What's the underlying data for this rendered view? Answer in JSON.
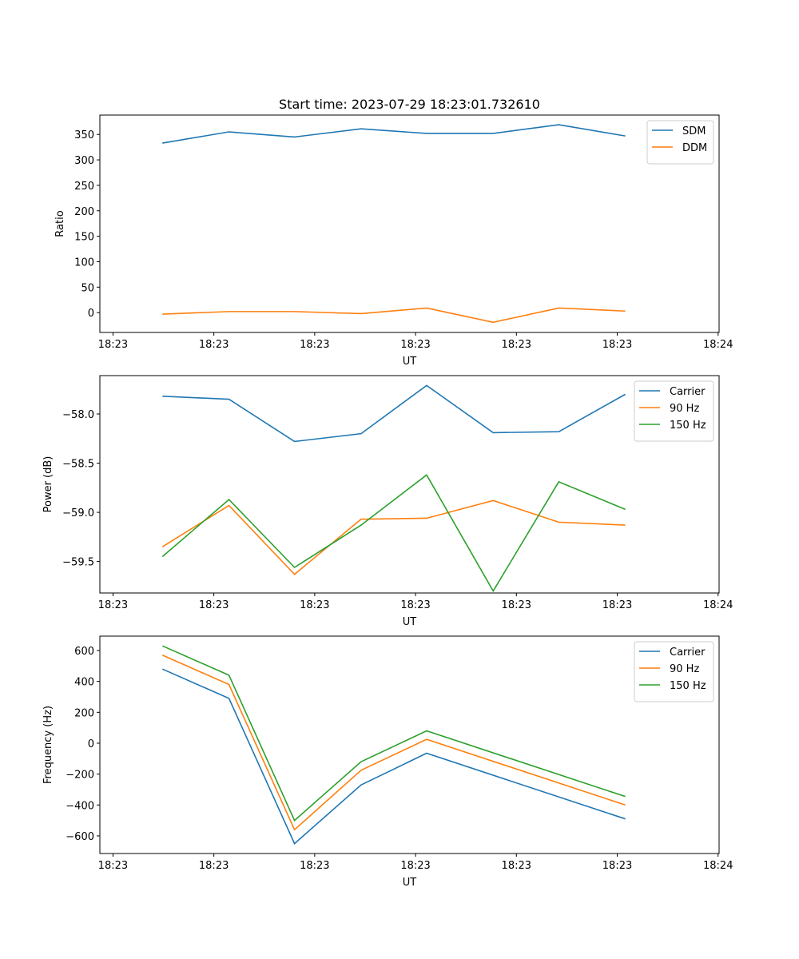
{
  "chart_data": [
    {
      "type": "line",
      "title": "Start time: 2023-07-29 18:23:01.732610",
      "xlabel": "UT",
      "ylabel": "Ratio",
      "x_unit": "seconds after 18:23:00",
      "xlim": [
        -1.3,
        60.1
      ],
      "xticks": [
        0,
        10,
        20,
        30,
        40,
        50,
        60
      ],
      "xtick_labels": [
        "18:23",
        "18:23",
        "18:23",
        "18:23",
        "18:23",
        "18:23",
        "18:24"
      ],
      "ylim": [
        -39,
        388
      ],
      "yticks": [
        0,
        50,
        100,
        150,
        200,
        250,
        300,
        350
      ],
      "ytick_labels": [
        "0",
        "50",
        "100",
        "150",
        "200",
        "250",
        "300",
        "350"
      ],
      "legend": "top-right",
      "x": [
        4.9,
        11.5,
        18.0,
        24.6,
        31.1,
        37.7,
        44.2,
        50.8
      ],
      "series": [
        {
          "name": "SDM",
          "color": "#1f77b4",
          "values": [
            333,
            355,
            345,
            361,
            352,
            352,
            369,
            347
          ]
        },
        {
          "name": "DDM",
          "color": "#ff7f0e",
          "values": [
            -3,
            2,
            2,
            -2,
            9,
            -19,
            9,
            3
          ]
        }
      ]
    },
    {
      "type": "line",
      "title": "",
      "xlabel": "UT",
      "ylabel": "Power (dB)",
      "x_unit": "seconds after 18:23:00",
      "xlim": [
        -1.3,
        60.1
      ],
      "xticks": [
        0,
        10,
        20,
        30,
        40,
        50,
        60
      ],
      "xtick_labels": [
        "18:23",
        "18:23",
        "18:23",
        "18:23",
        "18:23",
        "18:23",
        "18:24"
      ],
      "ylim": [
        -59.82,
        -57.61
      ],
      "yticks": [
        -58.0,
        -58.5,
        -59.0,
        -59.5
      ],
      "ytick_labels": [
        "−58.0",
        "−58.5",
        "−59.0",
        "−59.5"
      ],
      "legend": "top-right",
      "x": [
        4.9,
        11.5,
        18.0,
        24.6,
        31.1,
        37.7,
        44.2,
        50.8
      ],
      "series": [
        {
          "name": "Carrier",
          "color": "#1f77b4",
          "values": [
            -57.82,
            -57.85,
            -58.28,
            -58.2,
            -57.71,
            -58.19,
            -58.18,
            -57.8
          ]
        },
        {
          "name": "90 Hz",
          "color": "#ff7f0e",
          "values": [
            -59.35,
            -58.93,
            -59.63,
            -59.07,
            -59.06,
            -58.88,
            -59.1,
            -59.13
          ]
        },
        {
          "name": "150 Hz",
          "color": "#2ca02c",
          "values": [
            -59.45,
            -58.87,
            -59.56,
            -59.13,
            -58.62,
            -59.8,
            -58.69,
            -58.97
          ]
        }
      ]
    },
    {
      "type": "line",
      "title": "",
      "xlabel": "UT",
      "ylabel": "Frequency (Hz)",
      "x_unit": "seconds after 18:23:00",
      "xlim": [
        -1.3,
        60.1
      ],
      "xticks": [
        0,
        10,
        20,
        30,
        40,
        50,
        60
      ],
      "xtick_labels": [
        "18:23",
        "18:23",
        "18:23",
        "18:23",
        "18:23",
        "18:23",
        "18:24"
      ],
      "ylim": [
        -714,
        693
      ],
      "yticks": [
        600,
        400,
        200,
        0,
        -200,
        -400,
        -600
      ],
      "ytick_labels": [
        "600",
        "400",
        "200",
        "0",
        "−200",
        "−400",
        "−600"
      ],
      "legend": "top-right",
      "x": [
        4.9,
        11.5,
        18.0,
        24.6,
        31.1,
        50.8
      ],
      "series": [
        {
          "name": "Carrier",
          "color": "#1f77b4",
          "values": [
            480,
            290,
            -650,
            -270,
            -65,
            -490
          ]
        },
        {
          "name": "90 Hz",
          "color": "#ff7f0e",
          "values": [
            570,
            380,
            -560,
            -175,
            25,
            -400
          ]
        },
        {
          "name": "150 Hz",
          "color": "#2ca02c",
          "values": [
            630,
            440,
            -500,
            -120,
            80,
            -345
          ]
        }
      ]
    }
  ]
}
